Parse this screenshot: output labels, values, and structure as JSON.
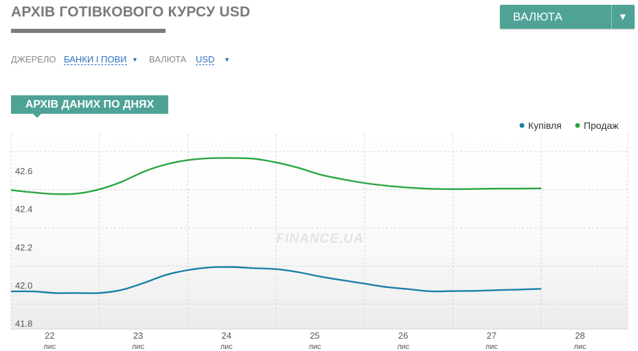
{
  "header": {
    "title": "АРХІВ ГОТІВКОВОГО КУРСУ USD",
    "currency_dropdown_label": "ВАЛЮТА",
    "currency_dropdown_arrow": "▼"
  },
  "filters": {
    "source_label": "ДЖЕРЕЛО",
    "source_value": "БАНКИ І ПОВИ",
    "currency_label": "ВАЛЮТА",
    "currency_value": "USD",
    "caret": "▼"
  },
  "section": {
    "tab_label": "АРХІВ ДАНИХ ПО ДНЯХ"
  },
  "watermark": "FINANCE.UA",
  "colors": {
    "accent": "#4fa396",
    "buy_line": "#1a7ea8",
    "sell_line": "#2aa542"
  },
  "chart_data": {
    "type": "line",
    "categories": [
      "22",
      "23",
      "24",
      "25",
      "26",
      "27",
      "28"
    ],
    "category_sublabel": "лис",
    "y_ticks": [
      "42.6",
      "42.4",
      "42.2",
      "42.0",
      "41.8"
    ],
    "ylim": [
      41.77,
      42.79
    ],
    "legend_position": "top-right",
    "grid": true,
    "x": [
      0,
      0.25,
      0.5,
      0.75,
      1,
      1.25,
      1.5,
      1.75,
      2,
      2.25,
      2.5,
      2.75,
      3,
      3.25,
      3.5,
      3.75,
      4,
      4.25,
      4.5,
      4.75,
      5,
      5.25,
      5.5,
      5.75,
      6
    ],
    "series": [
      {
        "name": "Купівля",
        "color_key": "buy_line",
        "values": [
          41.967,
          41.967,
          41.959,
          41.959,
          41.959,
          41.975,
          42.011,
          42.053,
          42.079,
          42.093,
          42.095,
          42.089,
          42.084,
          42.068,
          42.045,
          42.026,
          42.008,
          41.99,
          41.979,
          41.968,
          41.969,
          41.97,
          41.974,
          41.977,
          41.981
        ]
      },
      {
        "name": "Продаж",
        "color_key": "sell_line",
        "values": [
          42.498,
          42.486,
          42.477,
          42.48,
          42.502,
          42.541,
          42.594,
          42.632,
          42.655,
          42.665,
          42.666,
          42.662,
          42.643,
          42.615,
          42.579,
          42.555,
          42.535,
          42.521,
          42.511,
          42.505,
          42.503,
          42.504,
          42.506,
          42.506,
          42.507
        ]
      }
    ]
  }
}
